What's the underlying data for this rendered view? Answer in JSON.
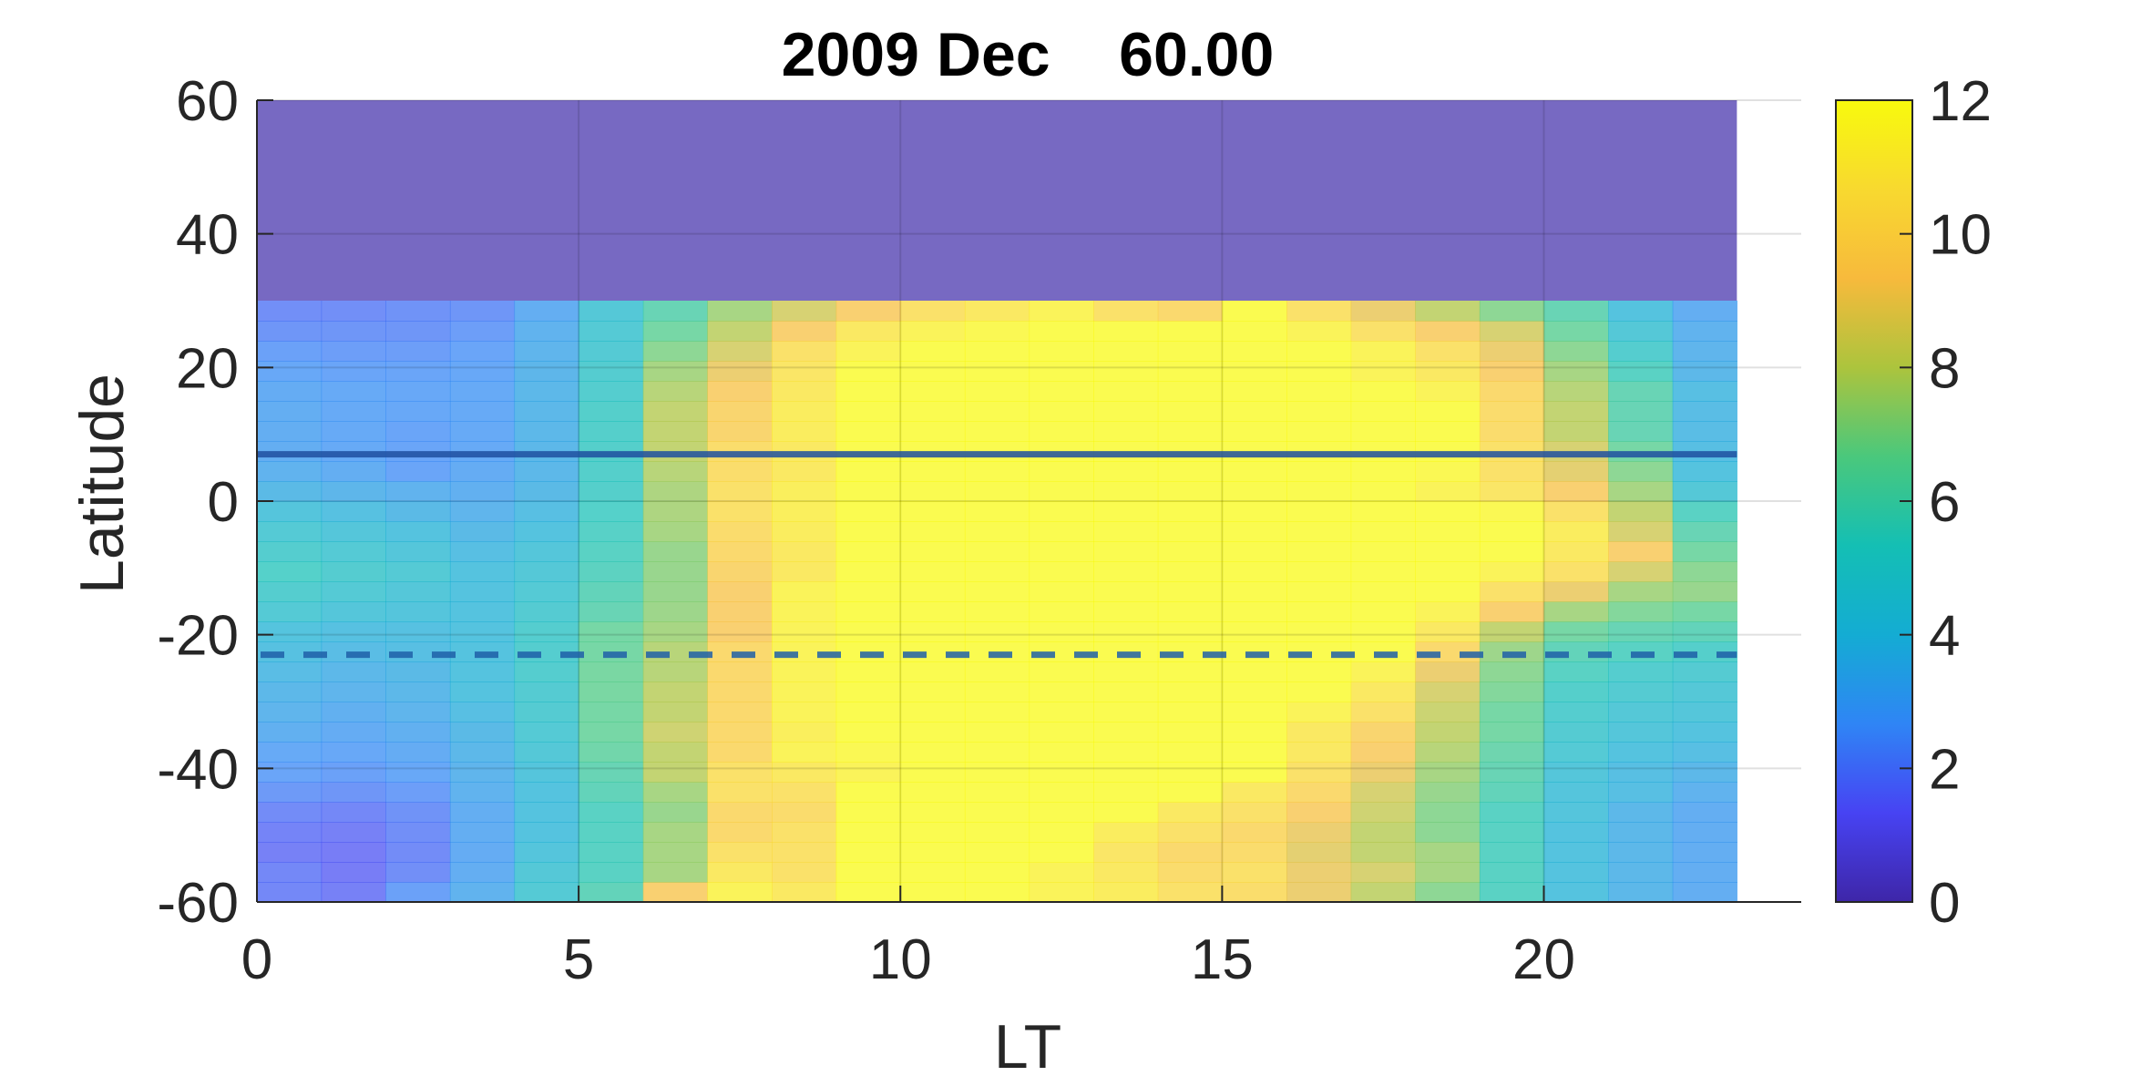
{
  "chart_data": {
    "type": "heatmap",
    "title": "2009 Dec    60.00",
    "xlabel": "LT",
    "ylabel": "Latitude",
    "xlim": [
      0,
      24
    ],
    "ylim": [
      -60,
      60
    ],
    "x_ticks": [
      "0",
      "5",
      "10",
      "15",
      "20"
    ],
    "y_ticks": [
      "-60",
      "-40",
      "-20",
      "0",
      "20",
      "40",
      "60"
    ],
    "colorbar": {
      "range": [
        0,
        12
      ],
      "ticks": [
        "0",
        "2",
        "4",
        "6",
        "8",
        "10",
        "12"
      ],
      "colormap": "parula",
      "colors": [
        "#3e26a8",
        "#4743f3",
        "#2f85f5",
        "#14acd3",
        "#14bfb4",
        "#4ac87c",
        "#acc43d",
        "#f7ba3c",
        "#f8d92f",
        "#f8fa0d"
      ]
    },
    "grid": true,
    "x_step": 1,
    "y_step": 3,
    "x_start": 0,
    "y_start": -60,
    "masked_region": {
      "lat_min": 30,
      "lat_max": 60,
      "color": "#7769c2"
    },
    "lines": [
      {
        "style": "solid",
        "latitude": 7,
        "color": "#1f4fa0"
      },
      {
        "style": "dashed",
        "latitude": -23,
        "color": "#1f5fa8"
      }
    ],
    "lat_rows": [
      -60,
      -57,
      -54,
      -51,
      -48,
      -45,
      -42,
      -39,
      -36,
      -33,
      -30,
      -27,
      -24,
      -21,
      -18,
      -15,
      -12,
      -9,
      -6,
      -3,
      0,
      3,
      6,
      9,
      12,
      15,
      18,
      21,
      24,
      27
    ],
    "values": [
      [
        1.8,
        1.6,
        2.5,
        3.2,
        4.6,
        5.8,
        9.5,
        11.5,
        11.0,
        12,
        12,
        12,
        11.5,
        11.2,
        10.5,
        10.3,
        9.0,
        8.0,
        7.0,
        5.5,
        4.0,
        3.5,
        3.0
      ],
      [
        1.8,
        1.5,
        2.0,
        3.0,
        4.5,
        5.5,
        7.5,
        11.0,
        10.5,
        12,
        12,
        12,
        11.5,
        11.0,
        10.2,
        10.5,
        9.0,
        8.5,
        7.5,
        5.5,
        4.0,
        3.5,
        3.0
      ],
      [
        1.6,
        1.5,
        1.9,
        2.9,
        4.2,
        5.5,
        7.5,
        10.5,
        10.5,
        12,
        12,
        12,
        12,
        10.8,
        10.0,
        10.2,
        8.8,
        8.0,
        7.5,
        5.5,
        4.0,
        3.5,
        3.0
      ],
      [
        1.7,
        1.6,
        2.0,
        3.0,
        4.0,
        5.5,
        7.5,
        10.0,
        10.5,
        12,
        12,
        12,
        12,
        11.2,
        10.5,
        10.0,
        9.0,
        8.0,
        7.0,
        5.5,
        4.0,
        3.5,
        3.0
      ],
      [
        1.9,
        1.8,
        2.1,
        3.0,
        4.0,
        5.5,
        7.2,
        10.0,
        10.2,
        12,
        12,
        12,
        12,
        12,
        11.0,
        10.5,
        9.5,
        8.3,
        7.0,
        5.5,
        4.2,
        3.5,
        3.0
      ],
      [
        2.3,
        2.2,
        2.4,
        3.2,
        4.0,
        5.8,
        7.5,
        10.5,
        10.5,
        12,
        12,
        12,
        12,
        12,
        12,
        11.0,
        10.0,
        8.5,
        7.2,
        5.8,
        4.2,
        3.8,
        3.2
      ],
      [
        2.6,
        2.5,
        2.7,
        3.3,
        4.2,
        6.0,
        8.0,
        10.5,
        11.0,
        11.5,
        12,
        12,
        12,
        12,
        12,
        12,
        10.5,
        9.0,
        7.5,
        6.0,
        4.3,
        3.8,
        3.5
      ],
      [
        2.8,
        2.7,
        2.9,
        3.5,
        4.5,
        6.3,
        8.0,
        10.0,
        11.5,
        11.8,
        12,
        12,
        12,
        12,
        12,
        12,
        11.0,
        9.5,
        7.8,
        6.2,
        4.6,
        4.0,
        3.8
      ],
      [
        3.1,
        2.9,
        3.1,
        3.6,
        4.6,
        6.5,
        8.3,
        10.0,
        11.3,
        12,
        12,
        12,
        12,
        12,
        12,
        12,
        11.0,
        9.8,
        8.0,
        6.5,
        4.8,
        4.3,
        4.0
      ],
      [
        3.3,
        3.1,
        3.3,
        3.8,
        4.8,
        6.5,
        8.0,
        10.0,
        11.5,
        12,
        12,
        12,
        12,
        12,
        12,
        12,
        11.5,
        10.5,
        8.2,
        6.5,
        5.0,
        4.5,
        4.3
      ],
      [
        3.5,
        3.3,
        3.5,
        4.0,
        4.8,
        6.6,
        8.0,
        10.0,
        11.5,
        12,
        12,
        12,
        12,
        12,
        12,
        12,
        12,
        11.0,
        8.5,
        6.8,
        5.2,
        4.8,
        4.5
      ],
      [
        3.7,
        3.5,
        3.6,
        4.0,
        5.0,
        6.6,
        7.8,
        10.0,
        11.5,
        12,
        12,
        12,
        12,
        12,
        12,
        12,
        12,
        11.5,
        9.0,
        7.0,
        5.5,
        5.0,
        4.8
      ],
      [
        3.9,
        3.7,
        3.8,
        4.0,
        5.0,
        6.5,
        7.8,
        10.0,
        11.5,
        12,
        12,
        12,
        12,
        12,
        12,
        12,
        12,
        12,
        10.0,
        7.3,
        5.8,
        5.5,
        5.2
      ],
      [
        4.1,
        3.9,
        3.9,
        4.0,
        5.0,
        6.5,
        7.5,
        9.5,
        11.5,
        12,
        12,
        12,
        12,
        12,
        12,
        12,
        12,
        12,
        11.0,
        8.0,
        6.5,
        6.0,
        5.8
      ],
      [
        4.6,
        4.3,
        4.2,
        4.0,
        4.8,
        6.0,
        7.3,
        9.5,
        11.5,
        12,
        12,
        12,
        12,
        12,
        12,
        12,
        12,
        12,
        11.5,
        9.5,
        7.5,
        6.8,
        6.5
      ],
      [
        5.0,
        4.6,
        4.4,
        4.0,
        4.6,
        5.8,
        7.2,
        9.5,
        11.5,
        12,
        12,
        12,
        12,
        12,
        12,
        12,
        12,
        12,
        12,
        10.5,
        9.0,
        7.5,
        7.2
      ],
      [
        5.3,
        4.9,
        4.6,
        4.0,
        4.5,
        5.6,
        7.2,
        9.8,
        11.0,
        12,
        12,
        12,
        12,
        12,
        12,
        12,
        12,
        12,
        12,
        11.5,
        10.5,
        8.5,
        7.0
      ],
      [
        5.0,
        4.6,
        4.3,
        3.8,
        4.3,
        5.5,
        7.2,
        10.0,
        11.0,
        12,
        12,
        12,
        12,
        12,
        12,
        12,
        12,
        12,
        12,
        12,
        11.0,
        9.5,
        6.5
      ],
      [
        4.6,
        4.3,
        4.0,
        3.6,
        4.0,
        5.4,
        7.5,
        10.2,
        11.2,
        12,
        12,
        12,
        12,
        12,
        12,
        12,
        12,
        12,
        12,
        12,
        11.2,
        8.5,
        6.0
      ],
      [
        4.2,
        3.9,
        3.6,
        3.3,
        3.8,
        5.3,
        7.6,
        10.5,
        11.3,
        12,
        12,
        12,
        12,
        12,
        12,
        12,
        12,
        12,
        12,
        11.8,
        10.5,
        8.0,
        5.5
      ],
      [
        3.6,
        3.4,
        3.2,
        3.1,
        3.6,
        5.2,
        7.6,
        10.5,
        11.3,
        12,
        12,
        12,
        12,
        12,
        12,
        12,
        12,
        12,
        11.5,
        10.8,
        9.5,
        7.5,
        4.5
      ],
      [
        3.2,
        3.0,
        2.6,
        2.9,
        3.5,
        5.2,
        7.8,
        10.3,
        11.0,
        12,
        12,
        12,
        12,
        12,
        12,
        12,
        12,
        12,
        11.8,
        10.5,
        8.8,
        7.0,
        4.0
      ],
      [
        3.0,
        2.8,
        2.6,
        2.8,
        3.5,
        5.2,
        8.0,
        10.3,
        11.0,
        12,
        12,
        12,
        12,
        12,
        12,
        12,
        12,
        12,
        12,
        10.5,
        8.5,
        6.5,
        3.8
      ],
      [
        3.0,
        2.8,
        2.6,
        2.8,
        3.5,
        5.2,
        8.0,
        9.8,
        11.2,
        12,
        12,
        12,
        12,
        12,
        12,
        12,
        12,
        12,
        12,
        10.2,
        8.0,
        6.0,
        3.7
      ],
      [
        3.0,
        2.8,
        2.7,
        2.8,
        3.5,
        5.2,
        8.0,
        9.8,
        11.2,
        12,
        12,
        12,
        12,
        12,
        12,
        12,
        12,
        12,
        12,
        10.2,
        8.0,
        6.0,
        3.7
      ],
      [
        2.9,
        2.8,
        2.7,
        2.8,
        3.5,
        5.0,
        7.8,
        9.5,
        11.0,
        12,
        12,
        12,
        12,
        12,
        12,
        12,
        12,
        12,
        11.5,
        10.0,
        7.8,
        6.0,
        3.8
      ],
      [
        2.7,
        2.6,
        2.6,
        2.7,
        3.4,
        4.9,
        7.5,
        9.0,
        10.8,
        12,
        12,
        12,
        12,
        12,
        12,
        12,
        12,
        11.5,
        11.0,
        9.5,
        7.5,
        5.5,
        3.5
      ],
      [
        2.5,
        2.4,
        2.4,
        2.6,
        3.3,
        4.7,
        7.0,
        8.5,
        10.5,
        11.5,
        12,
        12,
        12,
        12,
        12,
        12,
        12,
        11.5,
        10.5,
        9.0,
        7.0,
        5.0,
        3.3
      ],
      [
        2.2,
        2.2,
        2.2,
        2.4,
        3.2,
        4.6,
        6.5,
        8.0,
        9.5,
        11.0,
        11.5,
        11.8,
        12,
        12,
        12,
        12,
        11.5,
        10.5,
        9.5,
        8.5,
        6.5,
        4.5,
        3.2
      ],
      [
        2.0,
        2.0,
        2.1,
        2.2,
        3.0,
        4.5,
        6.0,
        7.5,
        8.5,
        9.5,
        10.5,
        11.0,
        11.5,
        10.5,
        10.0,
        12,
        10.5,
        9.0,
        8.0,
        7.0,
        6.0,
        4.0,
        3.0
      ]
    ]
  }
}
